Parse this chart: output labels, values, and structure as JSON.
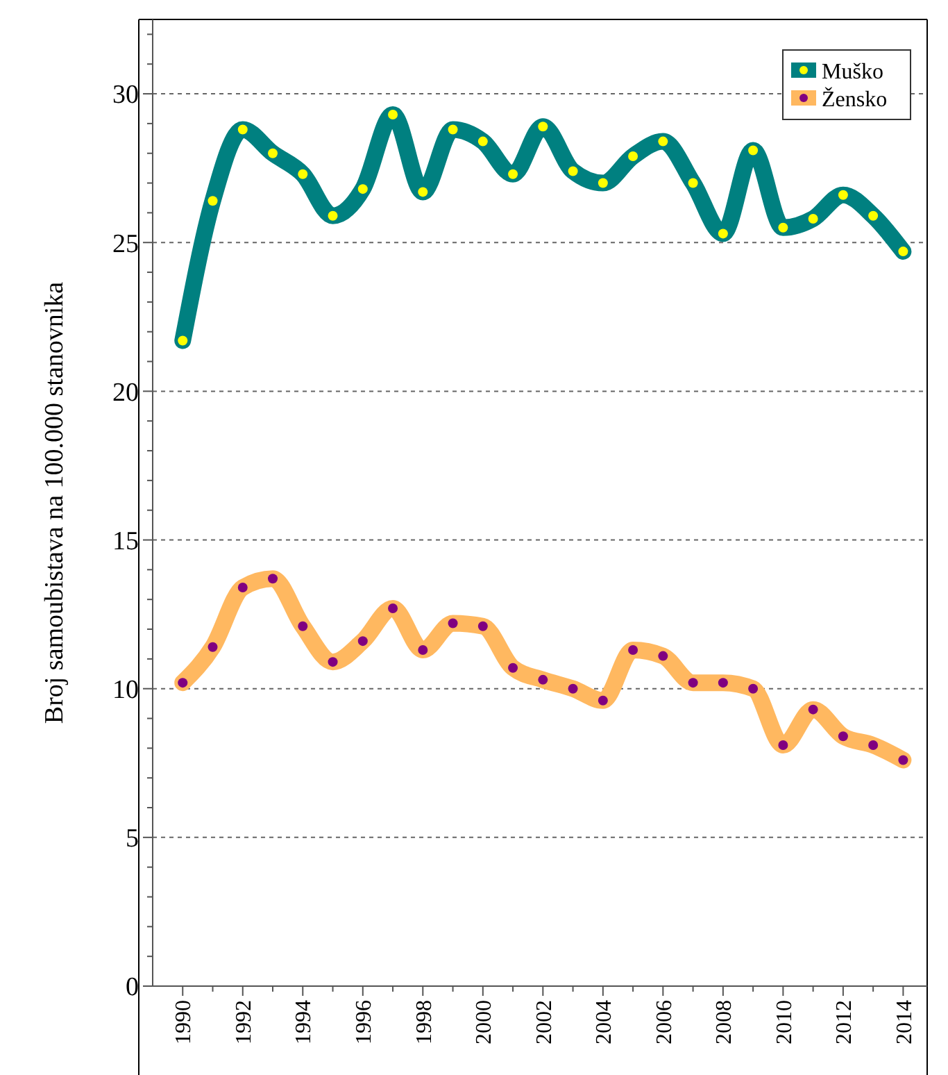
{
  "chart_data": {
    "type": "line",
    "ylabel": "Broj samoubistava na 100.000 stanovnika",
    "x": [
      1990,
      1991,
      1992,
      1993,
      1994,
      1995,
      1996,
      1997,
      1998,
      1999,
      2000,
      2001,
      2002,
      2003,
      2004,
      2005,
      2006,
      2007,
      2008,
      2009,
      2010,
      2011,
      2012,
      2013,
      2014
    ],
    "series": [
      {
        "name": "Muško",
        "color": "#008080",
        "values": [
          21.7,
          26.4,
          28.8,
          28.0,
          27.3,
          25.9,
          26.8,
          29.3,
          26.7,
          28.8,
          28.4,
          27.3,
          28.9,
          27.4,
          27.0,
          27.9,
          28.4,
          27.0,
          25.3,
          28.1,
          25.5,
          25.8,
          26.6,
          25.9,
          24.7
        ]
      },
      {
        "name": "Žensko",
        "color": "#ffb860",
        "values": [
          10.2,
          11.4,
          13.4,
          13.7,
          12.1,
          10.9,
          11.6,
          12.7,
          11.3,
          12.2,
          12.1,
          10.7,
          10.3,
          10.0,
          9.6,
          11.3,
          11.1,
          10.2,
          10.2,
          10.0,
          8.1,
          9.3,
          8.4,
          8.1,
          7.6
        ]
      }
    ],
    "xlim": [
      1989,
      2014.8
    ],
    "ylim": [
      0,
      32.5
    ],
    "xticks": [
      1990,
      {
        "value": 1991,
        "label": null
      },
      1992,
      {
        "value": 1993,
        "label": null
      },
      1994,
      {
        "value": 1995,
        "label": null
      },
      1996,
      {
        "value": 1997,
        "label": null
      },
      1998,
      {
        "value": 1999,
        "label": null
      },
      2000,
      {
        "value": 2001,
        "label": null
      },
      2002,
      {
        "value": 2003,
        "label": null
      },
      2004,
      {
        "value": 2005,
        "label": null
      },
      2006,
      {
        "value": 2007,
        "label": null
      },
      2008,
      {
        "value": 2009,
        "label": null
      },
      2010,
      {
        "value": 2011,
        "label": null
      },
      2012,
      {
        "value": 2013,
        "label": null
      },
      2014
    ],
    "yticks": [
      0,
      {
        "value": 1,
        "label": null
      },
      {
        "value": 2,
        "label": null
      },
      {
        "value": 3,
        "label": null
      },
      {
        "value": 4,
        "label": null
      },
      5,
      {
        "value": 6,
        "label": null
      },
      {
        "value": 7,
        "label": null
      },
      {
        "value": 8,
        "label": null
      },
      {
        "value": 9,
        "label": null
      },
      10,
      {
        "value": 11,
        "label": null
      },
      {
        "value": 12,
        "label": null
      },
      {
        "value": 13,
        "label": null
      },
      {
        "value": 14,
        "label": null
      },
      15,
      {
        "value": 16,
        "label": null
      },
      {
        "value": 17,
        "label": null
      },
      {
        "value": 18,
        "label": null
      },
      {
        "value": 19,
        "label": null
      },
      20,
      {
        "value": 21,
        "label": null
      },
      {
        "value": 22,
        "label": null
      },
      {
        "value": 23,
        "label": null
      },
      {
        "value": 24,
        "label": null
      },
      25,
      {
        "value": 26,
        "label": null
      },
      {
        "value": 27,
        "label": null
      },
      {
        "value": 28,
        "label": null
      },
      {
        "value": 29,
        "label": null
      },
      30,
      {
        "value": 31,
        "label": null
      },
      {
        "value": 32,
        "label": null
      }
    ],
    "grid": "y",
    "legend": "top right",
    "marker": "circle",
    "line_style": "solid"
  }
}
